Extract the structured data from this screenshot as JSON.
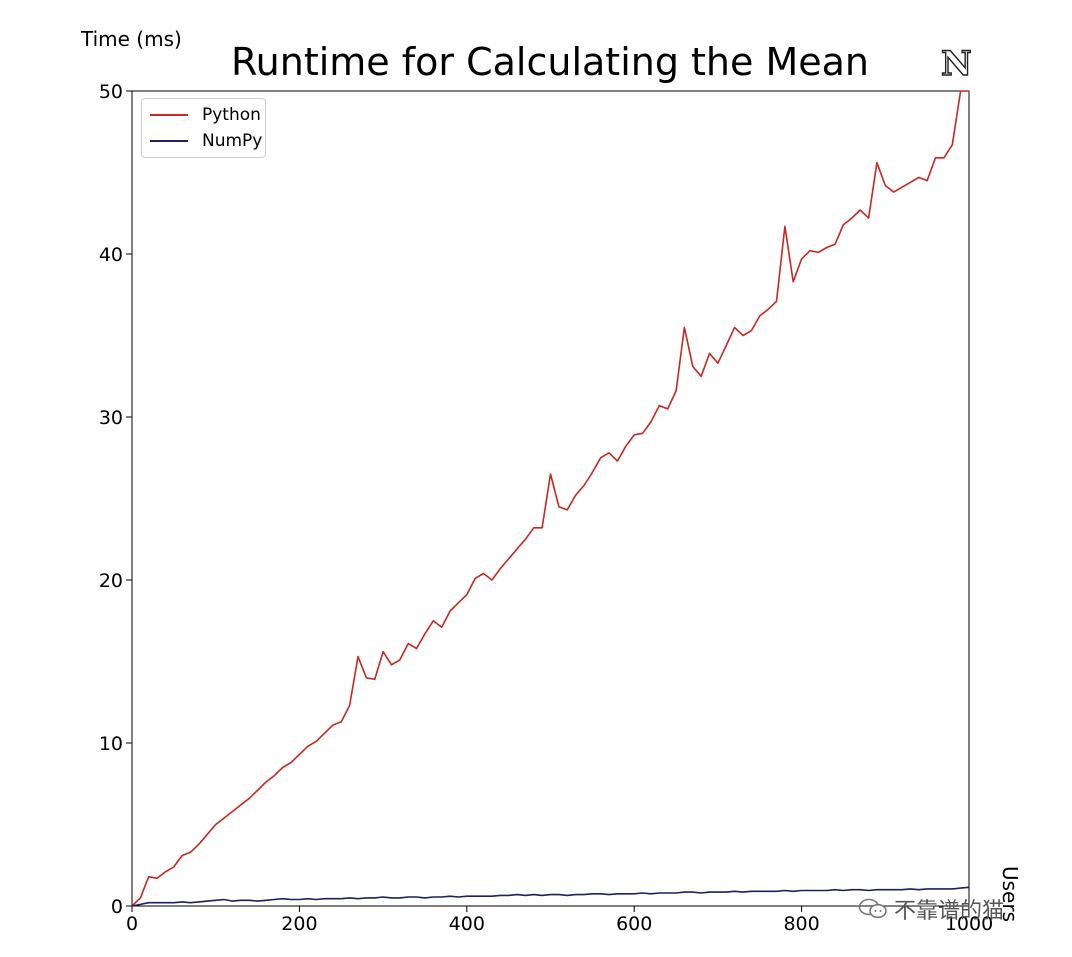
{
  "chart_data": {
    "type": "line",
    "title": "Runtime for Calculating the Mean",
    "ylabel": "Time (ms)",
    "xlabel": "Users",
    "xlim": [
      0,
      1000
    ],
    "ylim": [
      0,
      50
    ],
    "xticks": [
      0,
      200,
      400,
      600,
      800,
      1000
    ],
    "yticks": [
      0,
      10,
      20,
      30,
      40,
      50
    ],
    "grid": false,
    "legend_position": "upper-left",
    "x": [
      0,
      10,
      20,
      30,
      40,
      50,
      60,
      70,
      80,
      90,
      100,
      110,
      120,
      130,
      140,
      150,
      160,
      170,
      180,
      190,
      200,
      210,
      220,
      230,
      240,
      250,
      260,
      270,
      280,
      290,
      300,
      310,
      320,
      330,
      340,
      350,
      360,
      370,
      380,
      390,
      400,
      410,
      420,
      430,
      440,
      450,
      460,
      470,
      480,
      490,
      500,
      510,
      520,
      530,
      540,
      550,
      560,
      570,
      580,
      590,
      600,
      610,
      620,
      630,
      640,
      650,
      660,
      670,
      680,
      690,
      700,
      710,
      720,
      730,
      740,
      750,
      760,
      770,
      780,
      790,
      800,
      810,
      820,
      830,
      840,
      850,
      860,
      870,
      880,
      890,
      900,
      910,
      920,
      930,
      940,
      950,
      960,
      970,
      980,
      990,
      1000
    ],
    "series": [
      {
        "name": "Python",
        "color": "#c82820",
        "values": [
          0,
          0.5,
          1.8,
          1.7,
          2.1,
          2.4,
          3.1,
          3.3,
          3.8,
          4.4,
          5.0,
          5.4,
          5.8,
          6.2,
          6.6,
          7.1,
          7.6,
          8.0,
          8.5,
          8.8,
          9.3,
          9.8,
          10.1,
          10.6,
          11.1,
          11.3,
          12.3,
          15.3,
          14.0,
          13.9,
          15.6,
          14.8,
          15.1,
          16.1,
          15.8,
          16.7,
          17.5,
          17.1,
          18.1,
          18.6,
          19.1,
          20.1,
          20.4,
          20.0,
          20.7,
          21.3,
          21.9,
          22.5,
          23.2,
          23.2,
          26.5,
          24.5,
          24.3,
          25.2,
          25.8,
          26.6,
          27.5,
          27.8,
          27.3,
          28.2,
          28.9,
          29.0,
          29.7,
          30.7,
          30.5,
          31.6,
          35.5,
          33.1,
          32.5,
          33.9,
          33.3,
          34.4,
          35.5,
          35.0,
          35.3,
          36.2,
          36.6,
          37.1,
          41.7,
          38.3,
          39.7,
          40.2,
          40.1,
          40.4,
          40.6,
          41.8,
          42.2,
          42.7,
          42.2,
          45.6,
          44.2,
          43.8,
          44.1,
          44.4,
          44.7,
          44.5,
          45.9,
          45.9,
          46.7,
          50.0,
          50.0
        ]
      },
      {
        "name": "NumPy",
        "color": "#1c2160",
        "values": [
          0,
          0.1,
          0.2,
          0.2,
          0.2,
          0.2,
          0.25,
          0.2,
          0.25,
          0.3,
          0.35,
          0.4,
          0.3,
          0.35,
          0.35,
          0.3,
          0.35,
          0.4,
          0.45,
          0.4,
          0.4,
          0.45,
          0.4,
          0.45,
          0.45,
          0.45,
          0.5,
          0.45,
          0.5,
          0.5,
          0.55,
          0.5,
          0.5,
          0.55,
          0.55,
          0.5,
          0.55,
          0.55,
          0.6,
          0.55,
          0.6,
          0.6,
          0.6,
          0.6,
          0.65,
          0.65,
          0.7,
          0.65,
          0.7,
          0.65,
          0.7,
          0.7,
          0.65,
          0.7,
          0.7,
          0.75,
          0.75,
          0.7,
          0.75,
          0.75,
          0.75,
          0.8,
          0.75,
          0.8,
          0.8,
          0.8,
          0.85,
          0.85,
          0.8,
          0.85,
          0.85,
          0.85,
          0.9,
          0.85,
          0.9,
          0.9,
          0.9,
          0.9,
          0.95,
          0.9,
          0.95,
          0.95,
          0.95,
          0.95,
          1.0,
          0.95,
          1.0,
          1.0,
          0.95,
          1.0,
          1.0,
          1.0,
          1.0,
          1.05,
          1.0,
          1.05,
          1.05,
          1.05,
          1.05,
          1.1,
          1.15
        ]
      }
    ]
  },
  "logo": {
    "glyph": "ℕ",
    "icon": "double-struck-n-logo"
  },
  "watermark": {
    "icon": "wechat-icon",
    "text": "不靠谱的猫"
  }
}
